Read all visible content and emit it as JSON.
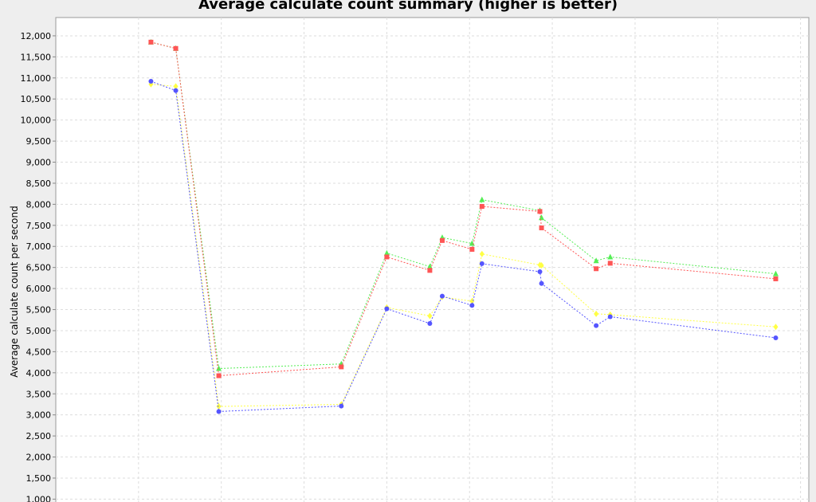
{
  "chart_data": {
    "type": "line",
    "title": "Average calculate count summary (higher is better)",
    "xlabel": "",
    "ylabel": "Average calculate count per second",
    "ylim": [
      1000,
      12300
    ],
    "grid": true,
    "y_ticks": [
      "1,000",
      "1,500",
      "2,000",
      "2,500",
      "3,000",
      "3,500",
      "4,000",
      "4,500",
      "5,000",
      "5,500",
      "6,000",
      "6,500",
      "7,000",
      "7,500",
      "8,000",
      "8,500",
      "9,000",
      "9,500",
      "10,000",
      "10,500",
      "11,000",
      "11,500",
      "12,000"
    ],
    "y_tick_values": [
      1000,
      1500,
      2000,
      2500,
      3000,
      3500,
      4000,
      4500,
      5000,
      5500,
      6000,
      6500,
      7000,
      7500,
      8000,
      8500,
      9000,
      9500,
      10000,
      10500,
      11000,
      11500,
      12000
    ],
    "x_gridlines": [
      1,
      2,
      3,
      4,
      5,
      6,
      7,
      8,
      9
    ],
    "xlim": [
      0,
      9.1
    ],
    "series": [
      {
        "color": "#ffff44",
        "marker": "diamond",
        "x": [
          1.15,
          1.45,
          1.97,
          3.45,
          4.0,
          4.52,
          4.67,
          5.03,
          5.15,
          5.85,
          5.87,
          6.53,
          6.7,
          8.7
        ],
        "values": [
          10850,
          10800,
          3200,
          3250,
          5550,
          5350,
          5800,
          5700,
          6820,
          6560,
          6550,
          5400,
          5380,
          5090
        ]
      },
      {
        "color": "#5555ff",
        "marker": "circle",
        "x": [
          1.15,
          1.45,
          1.97,
          3.45,
          4.0,
          4.52,
          4.67,
          5.03,
          5.15,
          5.85,
          5.87,
          6.53,
          6.7,
          8.7
        ],
        "values": [
          10920,
          10700,
          3080,
          3210,
          5520,
          5170,
          5820,
          5600,
          6590,
          6400,
          6120,
          5120,
          5330,
          4830
        ]
      },
      {
        "color": "#55ee55",
        "marker": "triangle",
        "x": [
          1.15,
          1.45,
          1.97,
          3.45,
          4.0,
          4.52,
          4.67,
          5.03,
          5.15,
          5.85,
          5.87,
          6.53,
          6.7,
          8.7
        ],
        "values": [
          11850,
          11700,
          4100,
          4210,
          6840,
          6520,
          7210,
          7070,
          8110,
          7850,
          7680,
          6660,
          6750,
          6350
        ]
      },
      {
        "color": "#ff5555",
        "marker": "square",
        "x": [
          1.15,
          1.45,
          1.97,
          3.45,
          4.0,
          4.52,
          4.67,
          5.03,
          5.15,
          5.85,
          5.87,
          6.53,
          6.7,
          8.7
        ],
        "values": [
          11850,
          11700,
          3930,
          4140,
          6750,
          6430,
          7140,
          6930,
          7950,
          7830,
          7440,
          6470,
          6600,
          6230
        ]
      }
    ]
  }
}
